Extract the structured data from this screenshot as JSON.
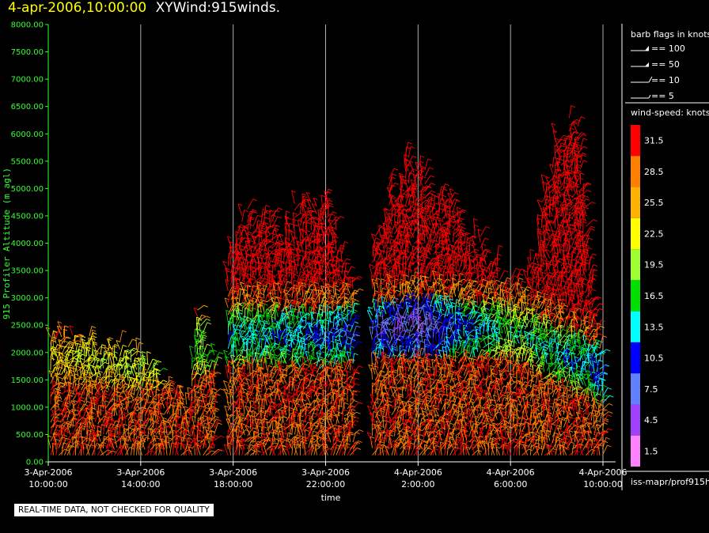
{
  "header": {
    "date_label": "4-apr-2006,10:00:00",
    "title": "XYWind:915winds."
  },
  "footer": {
    "quality_notice": "REAL-TIME DATA, NOT CHECKED FOR QUALITY",
    "source_label": "iss-mapr/prof915h"
  },
  "chart_data": {
    "type": "wind-barbs",
    "title": "XYWind:915winds.",
    "ylabel": "915 Profiler Altitude (m agl)",
    "xlabel": "time",
    "ylim": [
      0,
      8000
    ],
    "xlim_hours": [
      0,
      24
    ],
    "y_ticks": [
      "0.00",
      "500.00",
      "1000.00",
      "1500.00",
      "2000.00",
      "2500.00",
      "3000.00",
      "3500.00",
      "4000.00",
      "4500.00",
      "5000.00",
      "5500.00",
      "6000.00",
      "6500.00",
      "7000.00",
      "7500.00",
      "8000.00"
    ],
    "x_ticks": [
      {
        "hour": 0,
        "date": "3-Apr-2006",
        "time": "10:00:00"
      },
      {
        "hour": 4,
        "date": "3-Apr-2006",
        "time": "14:00:00"
      },
      {
        "hour": 8,
        "date": "3-Apr-2006",
        "time": "18:00:00"
      },
      {
        "hour": 12,
        "date": "3-Apr-2006",
        "time": "22:00:00"
      },
      {
        "hour": 16,
        "date": "4-Apr-2006",
        "time": "2:00:00"
      },
      {
        "hour": 20,
        "date": "4-Apr-2006",
        "time": "6:00:00"
      },
      {
        "hour": 24,
        "date": "4-Apr-2006",
        "time": "10:00:00"
      }
    ],
    "vertical_gridlines": true,
    "barb_legend": {
      "title": "barb flags in knots",
      "entries": [
        "== 100",
        "== 50",
        "== 10",
        "== 5"
      ]
    },
    "speed_legend": {
      "title": "wind-speed: knots",
      "entries": [
        {
          "label": "31.5",
          "color": "#ff0000"
        },
        {
          "label": "28.5",
          "color": "#ff8000"
        },
        {
          "label": "25.5",
          "color": "#ffb000"
        },
        {
          "label": "22.5",
          "color": "#ffff00"
        },
        {
          "label": "19.5",
          "color": "#a0ff30"
        },
        {
          "label": "16.5",
          "color": "#00e000"
        },
        {
          "label": "13.5",
          "color": "#00ffff"
        },
        {
          "label": "10.5",
          "color": "#0000ff"
        },
        {
          "label": "7.5",
          "color": "#6080ff"
        },
        {
          "label": "4.5",
          "color": "#a040ff"
        },
        {
          "label": "1.5",
          "color": "#ff80ff"
        }
      ]
    },
    "profile_tops_m": [
      {
        "hour": 0.0,
        "top": 2400
      },
      {
        "hour": 2.0,
        "top": 2300
      },
      {
        "hour": 4.0,
        "top": 2000
      },
      {
        "hour": 5.0,
        "top": 1400
      },
      {
        "hour": 6.0,
        "top": 1200
      },
      {
        "hour": 6.5,
        "top": 2900
      },
      {
        "hour": 7.0,
        "top": 1800
      },
      {
        "hour": 8.0,
        "top": 4200
      },
      {
        "hour": 9.0,
        "top": 4700
      },
      {
        "hour": 10.0,
        "top": 4400
      },
      {
        "hour": 11.0,
        "top": 4600
      },
      {
        "hour": 12.0,
        "top": 4800
      },
      {
        "hour": 13.0,
        "top": 3500
      },
      {
        "hour": 14.0,
        "top": 4000
      },
      {
        "hour": 15.0,
        "top": 5500
      },
      {
        "hour": 16.0,
        "top": 5400
      },
      {
        "hour": 17.0,
        "top": 5000
      },
      {
        "hour": 18.0,
        "top": 4400
      },
      {
        "hour": 19.0,
        "top": 3800
      },
      {
        "hour": 20.0,
        "top": 3300
      },
      {
        "hour": 21.0,
        "top": 3800
      },
      {
        "hour": 22.0,
        "top": 6200
      },
      {
        "hour": 23.0,
        "top": 6100
      },
      {
        "hour": 24.0,
        "top": 1600
      }
    ],
    "speed_profile_knots": [
      {
        "hour": 0,
        "low": 31.5,
        "mid": 22.5,
        "midAlt": 1800
      },
      {
        "hour": 4,
        "low": 31.5,
        "mid": 19.5,
        "midAlt": 1700
      },
      {
        "hour": 8,
        "low": 31.5,
        "mid": 13.5,
        "midAlt": 2200
      },
      {
        "hour": 12,
        "low": 31.5,
        "mid": 10.5,
        "midAlt": 2200
      },
      {
        "hour": 16,
        "low": 31.5,
        "mid": 4.5,
        "midAlt": 2400
      },
      {
        "hour": 20,
        "low": 31.5,
        "mid": 16.5,
        "midAlt": 2300
      },
      {
        "hour": 24,
        "low": 25.5,
        "mid": 10.5,
        "midAlt": 1500
      }
    ]
  }
}
